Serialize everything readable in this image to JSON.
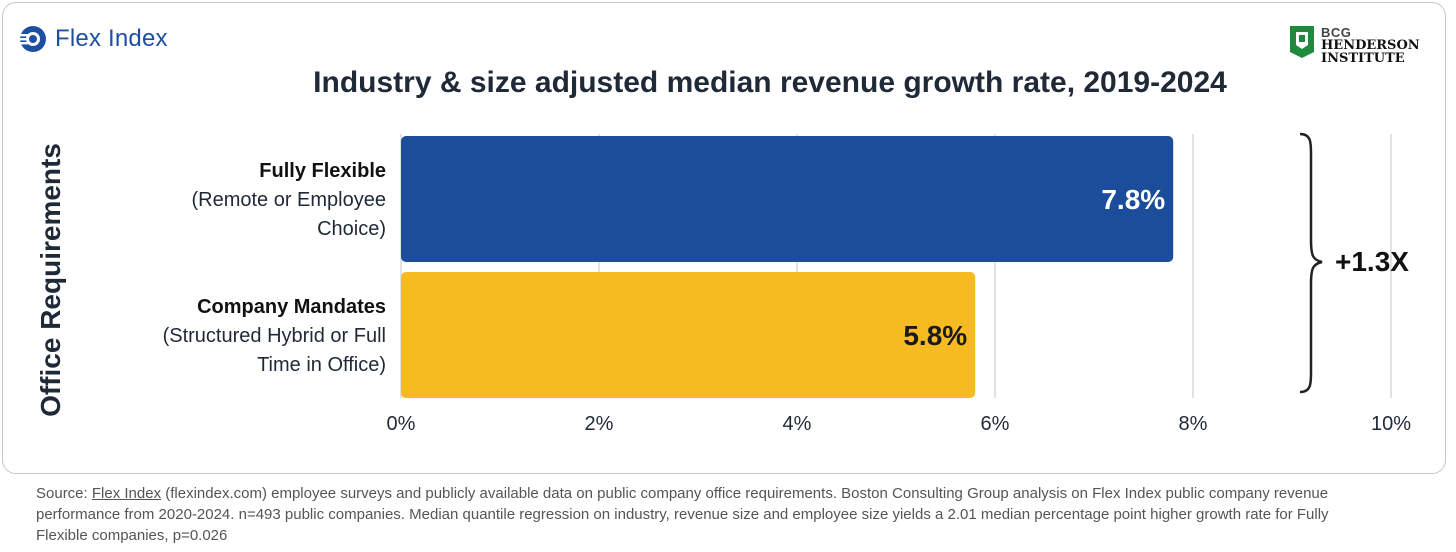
{
  "brand": {
    "name": "Flex Index",
    "logo_icon": "flex-index-logo-icon"
  },
  "partner": {
    "line1": "BCG",
    "line2": "HENDERSON",
    "line3": "INSTITUTE",
    "logo_icon": "bcg-henderson-logo-icon"
  },
  "colors": {
    "flexible": "#1c4d9a",
    "mandates": "#f6bb20",
    "brand": "#1d4fa3",
    "bhi_green": "#1d8a3e"
  },
  "chart_data": {
    "type": "bar",
    "orientation": "horizontal",
    "title": "Industry & size adjusted median revenue growth rate, 2019-2024",
    "ylabel": "Office Requirements",
    "xlabel": "",
    "xlim": [
      0,
      10
    ],
    "ticks": [
      0,
      2,
      4,
      6,
      8,
      10
    ],
    "tick_labels": [
      "0%",
      "2%",
      "4%",
      "6%",
      "8%",
      "10%"
    ],
    "grid": true,
    "categories": [
      {
        "name": "Fully Flexible",
        "desc1": "(Remote or Employee",
        "desc2": "Choice)"
      },
      {
        "name": "Company Mandates",
        "desc1": "(Structured Hybrid or Full",
        "desc2": "Time in Office)"
      }
    ],
    "values": [
      7.8,
      5.8
    ],
    "value_labels": [
      "7.8%",
      "5.8%"
    ],
    "annotation": "+1.3X"
  },
  "source": {
    "prefix": "Source: ",
    "link_text": "Flex Index",
    "text": " (flexindex.com) employee surveys and publicly available data on public company office requirements. Boston Consulting Group analysis on Flex Index public company revenue performance from 2020-2024. n=493 public companies. Median quantile regression on industry, revenue size and employee size yields a 2.01 median percentage point higher growth rate for Fully Flexible companies, p=0.026"
  }
}
